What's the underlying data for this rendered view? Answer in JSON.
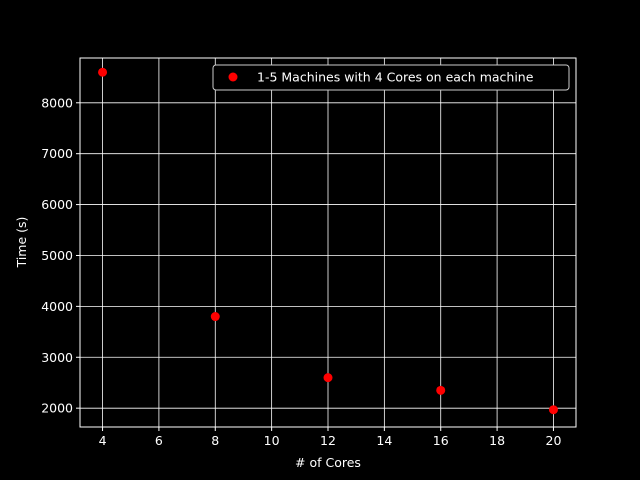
{
  "chart_data": {
    "type": "scatter",
    "title": "",
    "xlabel": "# of Cores",
    "ylabel": "Time (s)",
    "xlim": [
      3.2,
      20.8
    ],
    "ylim": [
      1630,
      8880
    ],
    "x_ticks": [
      4,
      6,
      8,
      10,
      12,
      14,
      16,
      18,
      20
    ],
    "y_ticks": [
      2000,
      3000,
      4000,
      5000,
      6000,
      7000,
      8000
    ],
    "grid": true,
    "legend_position": "top-right",
    "background": "#000000",
    "foreground": "#ffffff",
    "series": [
      {
        "name": "1-5 Machines with 4 Cores on each machine",
        "color": "#ff0000",
        "marker": "circle",
        "x": [
          4,
          8,
          12,
          16,
          20
        ],
        "y": [
          8600,
          3800,
          2600,
          2350,
          1970
        ]
      }
    ]
  }
}
